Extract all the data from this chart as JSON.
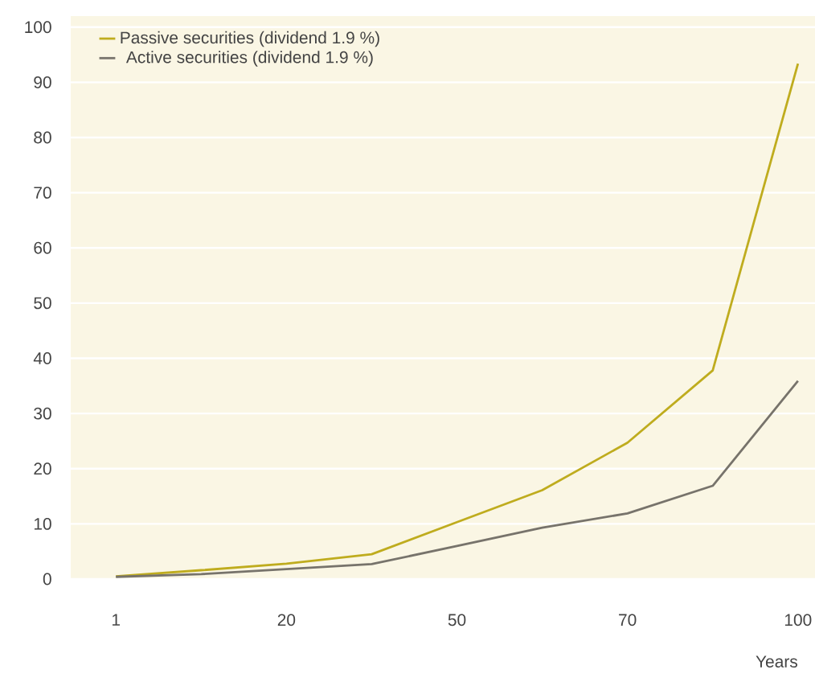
{
  "chart_data": {
    "type": "line",
    "xlabel": "Years",
    "categories": [
      "1",
      null,
      "20",
      null,
      "50",
      null,
      "70",
      null,
      "100"
    ],
    "series": [
      {
        "name": "Passive securities (dividend 1.9 %)",
        "color": "#bfac1e",
        "values": [
          0.5,
          1.6,
          2.8,
          4.5,
          10.3,
          16.1,
          24.7,
          37.8,
          93.4
        ]
      },
      {
        "name": "Active securities (dividend 1.9 %)",
        "color": "#77736b",
        "values": [
          0.4,
          0.9,
          1.8,
          2.7,
          6.0,
          9.3,
          11.9,
          16.9,
          35.9
        ]
      }
    ],
    "ylim": [
      0,
      102
    ],
    "yticks": [
      0,
      10,
      20,
      30,
      40,
      50,
      60,
      70,
      80,
      90,
      100
    ],
    "grid": "y",
    "legend": "top left",
    "line_style": "solid",
    "marker": "none"
  }
}
